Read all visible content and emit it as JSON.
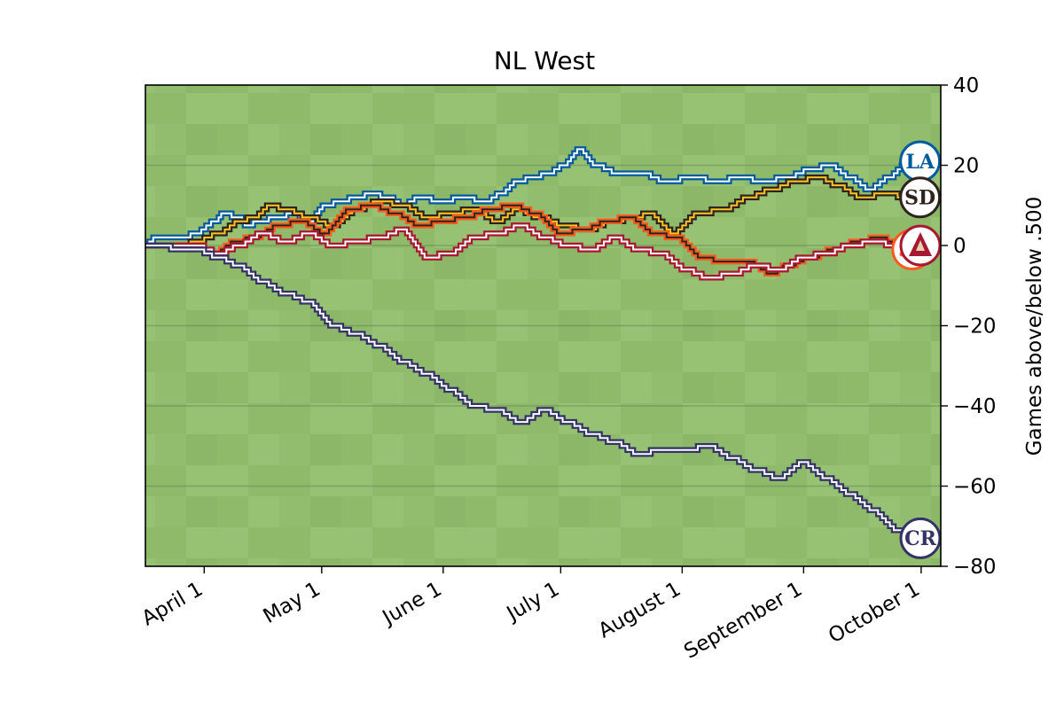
{
  "chart_data": {
    "type": "line",
    "title": "NL West",
    "xlabel": "",
    "ylabel": "Games above/below .500",
    "ylim": [
      -80,
      40
    ],
    "xlim": [
      "2023-03-17",
      "2023-10-06"
    ],
    "y_ticks": [
      40,
      20,
      0,
      -20,
      -40,
      -60,
      -80
    ],
    "y_tick_labels": [
      "40",
      "20",
      "0",
      "−20",
      "−40",
      "−60",
      "−80"
    ],
    "x_ticks": [
      "2023-04-01",
      "2023-05-01",
      "2023-06-01",
      "2023-07-01",
      "2023-08-01",
      "2023-09-01",
      "2023-10-01"
    ],
    "x_tick_labels": [
      "April  1",
      "May  1",
      "June  1",
      "July  1",
      "August  1",
      "September  1",
      "October  1"
    ],
    "y_axis_side": "right",
    "grid": "horizontal",
    "background": "baseball field grass",
    "series": [
      {
        "team": "LAD",
        "logo_text": "LA",
        "outline_color": "#005a9c",
        "line_color": "#ffffff",
        "x": [
          "2023-03-17",
          "2023-03-20",
          "2023-03-27",
          "2023-03-30",
          "2023-04-04",
          "2023-04-06",
          "2023-04-10",
          "2023-04-12",
          "2023-04-15",
          "2023-04-20",
          "2023-04-24",
          "2023-04-28",
          "2023-05-02",
          "2023-05-06",
          "2023-05-10",
          "2023-05-14",
          "2023-05-18",
          "2023-05-22",
          "2023-05-26",
          "2023-06-01",
          "2023-06-06",
          "2023-06-12",
          "2023-06-16",
          "2023-06-20",
          "2023-06-24",
          "2023-06-28",
          "2023-07-02",
          "2023-07-06",
          "2023-07-10",
          "2023-07-16",
          "2023-07-22",
          "2023-07-28",
          "2023-08-04",
          "2023-08-10",
          "2023-08-16",
          "2023-08-22",
          "2023-08-28",
          "2023-09-03",
          "2023-09-08",
          "2023-09-13",
          "2023-09-18",
          "2023-09-23",
          "2023-09-28"
        ],
        "y": [
          0,
          2,
          2,
          3,
          6,
          8,
          7,
          5,
          6,
          7,
          8,
          6,
          10,
          11,
          12,
          13,
          12,
          10,
          12,
          11,
          12,
          11,
          13,
          16,
          17,
          18,
          20,
          24,
          20,
          18,
          18,
          16,
          17,
          16,
          17,
          16,
          17,
          19,
          20,
          17,
          14,
          17,
          21
        ]
      },
      {
        "team": "SD",
        "logo_text": "SD",
        "outline_color": "#2f241d",
        "line_color": "#ffc425",
        "x": [
          "2023-03-17",
          "2023-03-27",
          "2023-03-30",
          "2023-04-05",
          "2023-04-10",
          "2023-04-14",
          "2023-04-18",
          "2023-04-22",
          "2023-04-28",
          "2023-05-04",
          "2023-05-10",
          "2023-05-16",
          "2023-05-22",
          "2023-05-28",
          "2023-06-03",
          "2023-06-09",
          "2023-06-15",
          "2023-06-20",
          "2023-06-26",
          "2023-07-02",
          "2023-07-08",
          "2023-07-14",
          "2023-07-20",
          "2023-07-24",
          "2023-07-30",
          "2023-08-05",
          "2023-08-12",
          "2023-08-18",
          "2023-08-24",
          "2023-08-30",
          "2023-09-05",
          "2023-09-10",
          "2023-09-16",
          "2023-09-22",
          "2023-09-28"
        ],
        "y": [
          0,
          0,
          1,
          3,
          6,
          7,
          10,
          9,
          7,
          5,
          9,
          11,
          10,
          7,
          8,
          9,
          6,
          9,
          7,
          5,
          4,
          6,
          7,
          8,
          3,
          8,
          9,
          12,
          14,
          16,
          17,
          15,
          12,
          13,
          12
        ]
      },
      {
        "team": "SF",
        "logo_text": "SF",
        "outline_color": "#fd5a1e",
        "line_color": "#27251f",
        "x": [
          "2023-03-17",
          "2023-03-30",
          "2023-04-04",
          "2023-04-09",
          "2023-04-14",
          "2023-04-20",
          "2023-04-26",
          "2023-05-02",
          "2023-05-08",
          "2023-05-14",
          "2023-05-20",
          "2023-05-26",
          "2023-06-01",
          "2023-06-07",
          "2023-06-13",
          "2023-06-19",
          "2023-06-25",
          "2023-07-01",
          "2023-07-07",
          "2023-07-13",
          "2023-07-19",
          "2023-07-25",
          "2023-07-31",
          "2023-08-06",
          "2023-08-12",
          "2023-08-18",
          "2023-08-24",
          "2023-08-28",
          "2023-09-03",
          "2023-09-09",
          "2023-09-15",
          "2023-09-21",
          "2023-09-26"
        ],
        "y": [
          0,
          0,
          -2,
          1,
          2,
          5,
          6,
          3,
          9,
          10,
          8,
          5,
          6,
          7,
          9,
          10,
          8,
          3,
          4,
          6,
          7,
          3,
          2,
          -3,
          -4,
          -4,
          -7,
          -5,
          -3,
          -1,
          1,
          2,
          -1
        ]
      },
      {
        "team": "ARI",
        "logo_text": "A",
        "outline_color": "#a71930",
        "line_color": "#ffffff",
        "x": [
          "2023-03-17",
          "2023-03-30",
          "2023-04-05",
          "2023-04-10",
          "2023-04-16",
          "2023-04-22",
          "2023-04-28",
          "2023-05-04",
          "2023-05-10",
          "2023-05-16",
          "2023-05-22",
          "2023-05-28",
          "2023-06-03",
          "2023-06-09",
          "2023-06-15",
          "2023-06-21",
          "2023-06-27",
          "2023-07-03",
          "2023-07-09",
          "2023-07-15",
          "2023-07-21",
          "2023-07-27",
          "2023-08-02",
          "2023-08-08",
          "2023-08-14",
          "2023-08-20",
          "2023-08-26",
          "2023-09-01",
          "2023-09-07",
          "2023-09-13",
          "2023-09-19",
          "2023-09-25",
          "2023-09-29"
        ],
        "y": [
          0,
          0,
          -2,
          0,
          3,
          1,
          3,
          0,
          1,
          2,
          4,
          -3,
          -2,
          2,
          3,
          5,
          2,
          0,
          -1,
          2,
          -1,
          -2,
          -6,
          -8,
          -7,
          -5,
          -6,
          -3,
          -2,
          0,
          1,
          0,
          0
        ]
      },
      {
        "team": "COL",
        "logo_text": "CR",
        "outline_color": "#333366",
        "line_color": "#ffffff",
        "x": [
          "2023-03-17",
          "2023-03-30",
          "2023-04-05",
          "2023-04-10",
          "2023-04-16",
          "2023-04-22",
          "2023-04-28",
          "2023-05-04",
          "2023-05-10",
          "2023-05-16",
          "2023-05-22",
          "2023-05-28",
          "2023-06-03",
          "2023-06-09",
          "2023-06-15",
          "2023-06-21",
          "2023-06-27",
          "2023-07-03",
          "2023-07-09",
          "2023-07-15",
          "2023-07-21",
          "2023-07-27",
          "2023-08-02",
          "2023-08-08",
          "2023-08-14",
          "2023-08-20",
          "2023-08-26",
          "2023-09-01",
          "2023-09-07",
          "2023-09-13",
          "2023-09-19",
          "2023-09-25",
          "2023-09-29"
        ],
        "y": [
          0,
          -1,
          -3,
          -5,
          -9,
          -12,
          -14,
          -20,
          -22,
          -25,
          -29,
          -32,
          -36,
          -40,
          -41,
          -44,
          -41,
          -44,
          -47,
          -49,
          -52,
          -51,
          -51,
          -50,
          -53,
          -56,
          -58,
          -54,
          -58,
          -62,
          -66,
          -71,
          -73
        ]
      }
    ]
  }
}
